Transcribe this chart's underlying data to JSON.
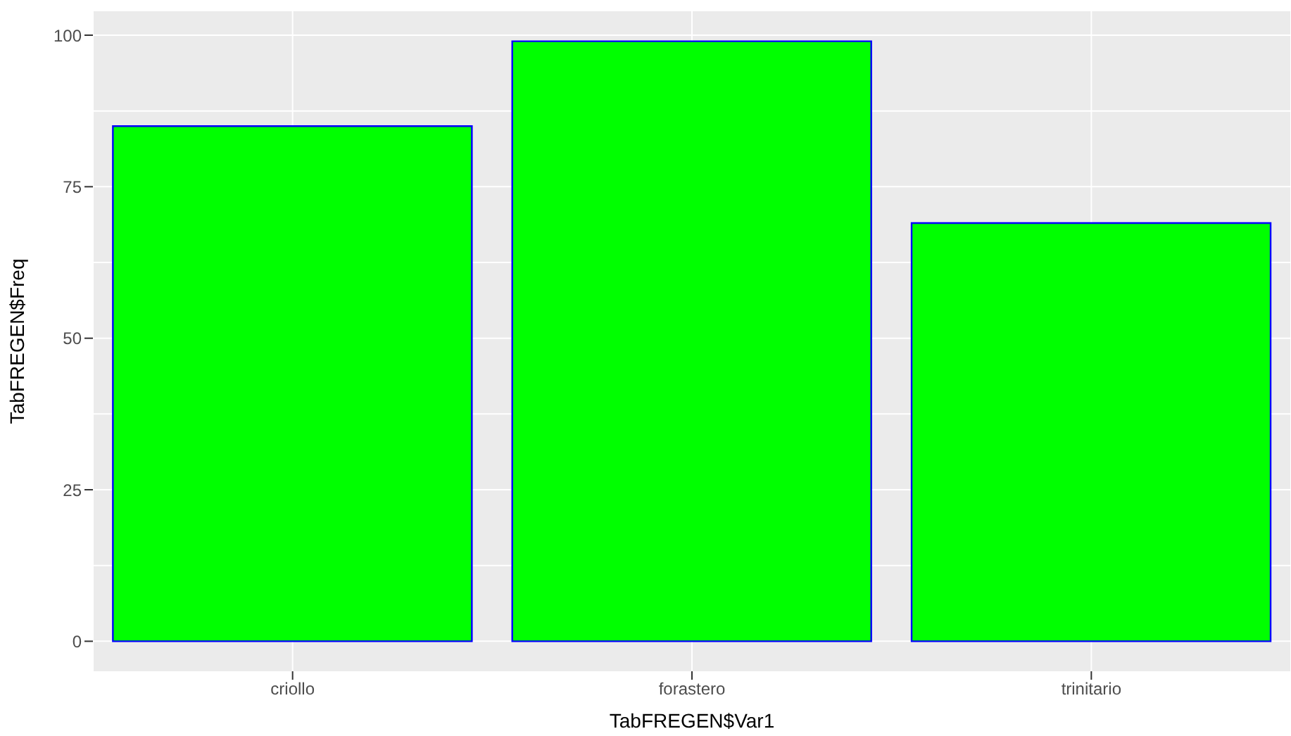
{
  "chart_data": {
    "type": "bar",
    "xlabel": "TabFREGEN$Var1",
    "ylabel": "TabFREGEN$Freq",
    "categories": [
      "criollo",
      "forastero",
      "trinitario"
    ],
    "values": [
      85,
      99,
      69
    ],
    "color": "#00ff00",
    "ylim": [
      -4.95,
      103.95
    ],
    "yticks": [
      0,
      25,
      50,
      75,
      100
    ],
    "grid": true
  }
}
